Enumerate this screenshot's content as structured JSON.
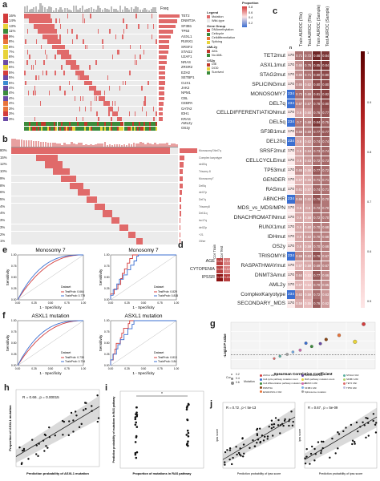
{
  "panels": {
    "a": "a",
    "b": "b",
    "c": "c",
    "d": "d",
    "e": "e",
    "f": "f",
    "g": "g",
    "h": "h",
    "i": "i",
    "j": "j"
  },
  "panel_a": {
    "freq_label": "Freq",
    "percents": [
      "16%",
      "14%",
      "13%",
      "11%",
      "9%",
      "8%",
      "8%",
      "7%",
      "6%",
      "6%",
      "5%",
      "5%",
      "5%",
      "5%",
      "4%",
      "4%",
      "4%",
      "4%",
      "3%",
      "3%",
      "3%"
    ],
    "genes": [
      "TET2",
      "DNMT3A",
      "SF3B1",
      "TP53",
      "ASXL1",
      "RUNX1",
      "SRSF2",
      "STAG2",
      "U2AF1",
      "NRAS",
      "ZRSR2",
      "EZH2",
      "SETBP1",
      "CUX1",
      "JAK2",
      "NPM1",
      "CBL",
      "CEBPA",
      "GATA2",
      "IDH1",
      "KRAS"
    ],
    "row_colors": [
      "#d33c3c",
      "#d33c3c",
      "#e8d33a",
      "#3b8b3b",
      "#d33c3c",
      "#e8743a",
      "#e8d33a",
      "#e8d33a",
      "#e8d33a",
      "#6a4aa6",
      "#e8d33a",
      "#d33c3c",
      "#6a4aa6",
      "#3b8bd1",
      "#6a4aa6",
      "#3b8b3b",
      "#6a4aa6",
      "#e8743a",
      "#e8743a",
      "#d33c3c",
      "#6a4aa6"
    ],
    "bar_fracs": [
      1.0,
      0.88,
      0.8,
      0.7,
      0.58,
      0.5,
      0.5,
      0.45,
      0.38,
      0.38,
      0.32,
      0.32,
      0.32,
      0.3,
      0.26,
      0.26,
      0.25,
      0.24,
      0.2,
      0.2,
      0.19
    ],
    "legend_title": "Legend",
    "legend_items": [
      {
        "label": "Mutation",
        "color": "#e06a6a"
      },
      {
        "label": "Wild-type",
        "color": "#e8e8e8"
      }
    ],
    "gene_group_title": "Gene Group",
    "gene_groups": [
      {
        "label": "DNAmethylation",
        "color": "#d33c3c"
      },
      {
        "label": "Cellcycle",
        "color": "#3b8b3b"
      },
      {
        "label": "Celldifferentiation",
        "color": "#e8743a"
      },
      {
        "label": "Splicing",
        "color": "#e8d33a"
      }
    ],
    "aml2y_title": "AML2y",
    "aml2y_items": [
      {
        "label": "AML",
        "color": "#c0392b"
      },
      {
        "label": "No AML",
        "color": "#3b8b3b"
      }
    ],
    "os2y_title": "OS2y",
    "os2y_items": [
      {
        "label": "DIE",
        "color": "#c0392b"
      },
      {
        "label": "DOD",
        "color": "#e8d33a"
      },
      {
        "label": "Survived",
        "color": "#3b8b3b"
      }
    ],
    "bottom_rows": [
      "AML2y",
      "OS2y"
    ]
  },
  "panel_b": {
    "percents": [
      "80%",
      "15%",
      "12%",
      "10%",
      "9%",
      "8%",
      "6%",
      "5%",
      "4%",
      "4%",
      "3%",
      "3%",
      "2%",
      "1%"
    ],
    "row_labels": [
      "Monosomy7/del7q",
      "Complex karyotype",
      "del20q",
      "Trisomy 8",
      "Monosomy7",
      "Del5q",
      "del17p",
      "Del7q",
      "Trisomy8",
      "Del11q",
      "iso17q",
      "del12p",
      "+21",
      "Other"
    ],
    "bar_fracs": [
      1.0,
      0.28,
      0.22,
      0.2,
      0.18,
      0.16,
      0.12,
      0.1,
      0.09,
      0.08,
      0.06,
      0.06,
      0.05,
      0.03
    ]
  },
  "panel_c": {
    "proportion_title": "Proportion",
    "proportion_ticks": [
      "0.8",
      "0.6",
      "0.4",
      "0.2"
    ],
    "n_header": "n",
    "columns": [
      "Train AUROC (Tile)",
      "Test AUROC (Tile)",
      "Train AUROC (Sample)",
      "Test AUROC (Sample)"
    ],
    "side_ticks": [
      "1",
      "0.9",
      "0.8",
      "0.7",
      "0.6",
      "0.5"
    ],
    "rows": [
      {
        "label": "TET2mut",
        "n": "170",
        "vals": [
          "0.71",
          "0.72",
          "0.88",
          "0.84"
        ]
      },
      {
        "label": "ASXL1mut",
        "n": "170",
        "vals": [
          "0.65",
          "0.76",
          "0.85",
          "0.84"
        ]
      },
      {
        "label": "STAG2mut",
        "n": "170",
        "vals": [
          "0.66",
          "0.71",
          "0.80",
          "0.80"
        ]
      },
      {
        "label": "SPLICINGmut",
        "n": "170",
        "vals": [
          "0.65",
          "0.62",
          "0.80",
          "0.80"
        ]
      },
      {
        "label": "MONOSOMY7",
        "n": "234",
        "vals": [
          "0.72",
          "0.69",
          "0.81",
          "0.82"
        ]
      },
      {
        "label": "DEL7q",
        "n": "234",
        "vals": [
          "0.67",
          "0.67",
          "0.78",
          "0.80"
        ]
      },
      {
        "label": "CELLDIFFERENTIATIONmut",
        "n": "170",
        "vals": [
          "0.6",
          "0.60",
          "0.76",
          "0.77"
        ]
      },
      {
        "label": "DEL5q",
        "n": "234",
        "vals": [
          "0.7",
          "0.68",
          "0.84",
          "0.75"
        ]
      },
      {
        "label": "SF3B1mut",
        "n": "170",
        "vals": [
          "0.68",
          "0.69",
          "0.77",
          "0.77"
        ]
      },
      {
        "label": "DEL20q",
        "n": "234",
        "vals": [
          "0.6",
          "0.62",
          "0.74",
          "0.74"
        ]
      },
      {
        "label": "SRSF2mut",
        "n": "170",
        "vals": [
          "0.6",
          "0.64",
          "0.73",
          "0.74"
        ]
      },
      {
        "label": "CELLCYCLEmut",
        "n": "170",
        "vals": [
          "0.6",
          "0.63",
          "0.72",
          "0.73"
        ]
      },
      {
        "label": "TP53mut",
        "n": "170",
        "vals": [
          "0.65",
          "0.58",
          "0.77",
          "0.72"
        ]
      },
      {
        "label": "GENDER",
        "n": "170",
        "vals": [
          "0.57",
          "0.59",
          "0.71",
          "0.71"
        ]
      },
      {
        "label": "RASmut",
        "n": "170",
        "vals": [
          "0.61",
          "0.57",
          "0.74",
          "0.71"
        ]
      },
      {
        "label": "ABNCHR",
        "n": "234",
        "vals": [
          "0.66",
          "0.62",
          "0.78",
          "0.70"
        ]
      },
      {
        "label": "MDS_vs_MDS/MPN",
        "n": "170",
        "vals": [
          "0.6",
          "0.6",
          "0.72",
          "0.70"
        ]
      },
      {
        "label": "DNACHROMATINmut",
        "n": "170",
        "vals": [
          "0.6",
          "0.58",
          "0.72",
          "0.70"
        ]
      },
      {
        "label": "RUNX1mut",
        "n": "170",
        "vals": [
          "0.6",
          "0.60",
          "0.70",
          "0.68"
        ]
      },
      {
        "label": "IDHmut",
        "n": "170",
        "vals": [
          "0.6",
          "0.62",
          "0.70",
          "0.68"
        ]
      },
      {
        "label": "OS2y",
        "n": "170",
        "vals": [
          "0.6",
          "0.59",
          "0.70",
          "0.68"
        ]
      },
      {
        "label": "TRISOMY8",
        "n": "234",
        "vals": [
          "0.66",
          "0.63",
          "0.78",
          "0.67"
        ]
      },
      {
        "label": "RASPATHWAYmut",
        "n": "170",
        "vals": [
          "0.57",
          "0.59",
          "0.69",
          "0.67"
        ]
      },
      {
        "label": "DNMT3Amut",
        "n": "170",
        "vals": [
          "0.64",
          "0.53",
          "0.77",
          "0.66"
        ]
      },
      {
        "label": "AML2y",
        "n": "170",
        "vals": [
          "0.57",
          "0.54",
          "0.70",
          "0.65"
        ]
      },
      {
        "label": "ComplexKaryotype",
        "n": "234",
        "vals": [
          "0.63",
          "0.59",
          "0.72",
          "0.63"
        ]
      },
      {
        "label": "SECONDARY_MDS",
        "n": "170",
        "vals": [
          "0.59",
          "0.55",
          "0.76",
          "0.62"
        ]
      }
    ]
  },
  "panel_d": {
    "columns": [
      "Cor Train",
      "Cor Test"
    ],
    "rows": [
      "AGE",
      "CYTOPENIA",
      "IPSSR"
    ],
    "cells": [
      [
        "0.21",
        "0.14"
      ],
      [
        "0.19",
        "0.12"
      ],
      [
        "0.33",
        "0.24"
      ]
    ]
  },
  "panel_e": {
    "left_title": "Monosomy 7",
    "right_title": "Monosomy 7",
    "xlabel": "1 - Specificity",
    "ylabel": "Sensitivity",
    "legend_title": "Dataset",
    "left_legend": [
      {
        "label": "TestProb: 0.664",
        "color": "#d33c3c"
      },
      {
        "label": "TrainProb: 0.779",
        "color": "#3b6fd1"
      }
    ],
    "right_legend": [
      {
        "label": "TestProb: 0.829",
        "color": "#d33c3c"
      },
      {
        "label": "TrainProb: 0.815",
        "color": "#3b6fd1"
      }
    ],
    "ticks": [
      "0.00",
      "0.25",
      "0.50",
      "0.75",
      "1.00"
    ]
  },
  "panel_f": {
    "left_title": "ASXL1 mutation",
    "right_title": "ASXL1 mutation",
    "xlabel": "1 - Specificity",
    "ylabel": "Sensitivity",
    "legend_title": "Dataset",
    "left_legend": [
      {
        "label": "TestProb: 0.735",
        "color": "#d33c3c"
      },
      {
        "label": "TrainProb: 0.734",
        "color": "#3b6fd1"
      }
    ],
    "right_legend": [
      {
        "label": "TestProb: 0.813",
        "color": "#d33c3c"
      },
      {
        "label": "TrainProb: 0.84",
        "color": "#3b6fd1"
      }
    ],
    "ticks": [
      "0.00",
      "0.25",
      "0.50",
      "0.75",
      "1.00"
    ]
  },
  "panel_g": {
    "xlabel": "Spearman Correlation Coefficient",
    "ylabel": "-Log10 P value",
    "legend_cor": "Cor",
    "legend_cor_values": [
      "0.2",
      "0.4",
      "0.6"
    ],
    "legend_mutation": "Mutation",
    "legend_items": [
      {
        "label": "ASXL1 VAF",
        "color": "#d33c3c"
      },
      {
        "label": "Cell cycle pathway mutation count",
        "color": "#3b6fd1"
      },
      {
        "label": "Cell differentiation pathway mutation count",
        "color": "#3b8b3b"
      },
      {
        "label": "DNMT3A",
        "color": "#8b4513"
      },
      {
        "label": "EZH2/ASXL1 VAF",
        "color": "#e8743a"
      },
      {
        "label": "KRAS/NRAS VAF",
        "color": "#6a4aa6"
      },
      {
        "label": "RAS pathway mutation count",
        "color": "#e8d33a"
      },
      {
        "label": "RUNX1 VAF",
        "color": "#d36ab0"
      },
      {
        "label": "SF3B1 VAF",
        "color": "#7ab0e8"
      },
      {
        "label": "Splicosome mutation",
        "color": "#a0a0a0"
      },
      {
        "label": "STAG2 VAF",
        "color": "#5ab0a0"
      },
      {
        "label": "SF3B1 VAF",
        "color": "#b0d36a"
      },
      {
        "label": "TET2 VAF",
        "color": "#e06a6a"
      },
      {
        "label": "TP53 VAF",
        "color": "#c0c0e0"
      }
    ],
    "points": [
      {
        "x": 0.92,
        "y": 0.96,
        "color": "#d33c3c",
        "r": 2.2
      },
      {
        "x": 0.75,
        "y": 0.72,
        "color": "#e8743a",
        "r": 2.0
      },
      {
        "x": 0.86,
        "y": 0.58,
        "color": "#e8d33a",
        "r": 2.4
      },
      {
        "x": 0.62,
        "y": 0.54,
        "color": "#6a4aa6",
        "r": 1.8
      },
      {
        "x": 0.56,
        "y": 0.48,
        "color": "#3b8b3b",
        "r": 1.8
      },
      {
        "x": 0.48,
        "y": 0.4,
        "color": "#d36ab0",
        "r": 1.7
      },
      {
        "x": 0.43,
        "y": 0.36,
        "color": "#7ab0e8",
        "r": 1.6
      },
      {
        "x": 0.39,
        "y": 0.31,
        "color": "#a0a0a0",
        "r": 1.6
      },
      {
        "x": 0.34,
        "y": 0.27,
        "color": "#5ab0a0",
        "r": 1.5
      },
      {
        "x": 0.52,
        "y": 0.55,
        "color": "#3b6fd1",
        "r": 1.8
      },
      {
        "x": 0.66,
        "y": 0.63,
        "color": "#8b4513",
        "r": 1.9
      },
      {
        "x": 0.3,
        "y": 0.22,
        "color": "#e06a6a",
        "r": 1.4
      }
    ]
  },
  "panel_h": {
    "annotation": "R = 0.66 , p = 0.00015",
    "xlabel": "Prediction probability of ASXL1 mutation",
    "ylabel": "Proportion of ASXL1 mutation"
  },
  "panel_i": {
    "xlabel": "Proportion of mutations in RAS pathway",
    "ylabel": "Prediction probability of mutations in RAS pathway",
    "sig": "*"
  },
  "panel_j": {
    "left_annotation": "R = 0.72 , p < 5e-13",
    "right_annotation": "R = 0.67 , p = 5e-09",
    "xlabel": "Prediction probability of ipss score",
    "ylabel": "ipss score"
  }
}
